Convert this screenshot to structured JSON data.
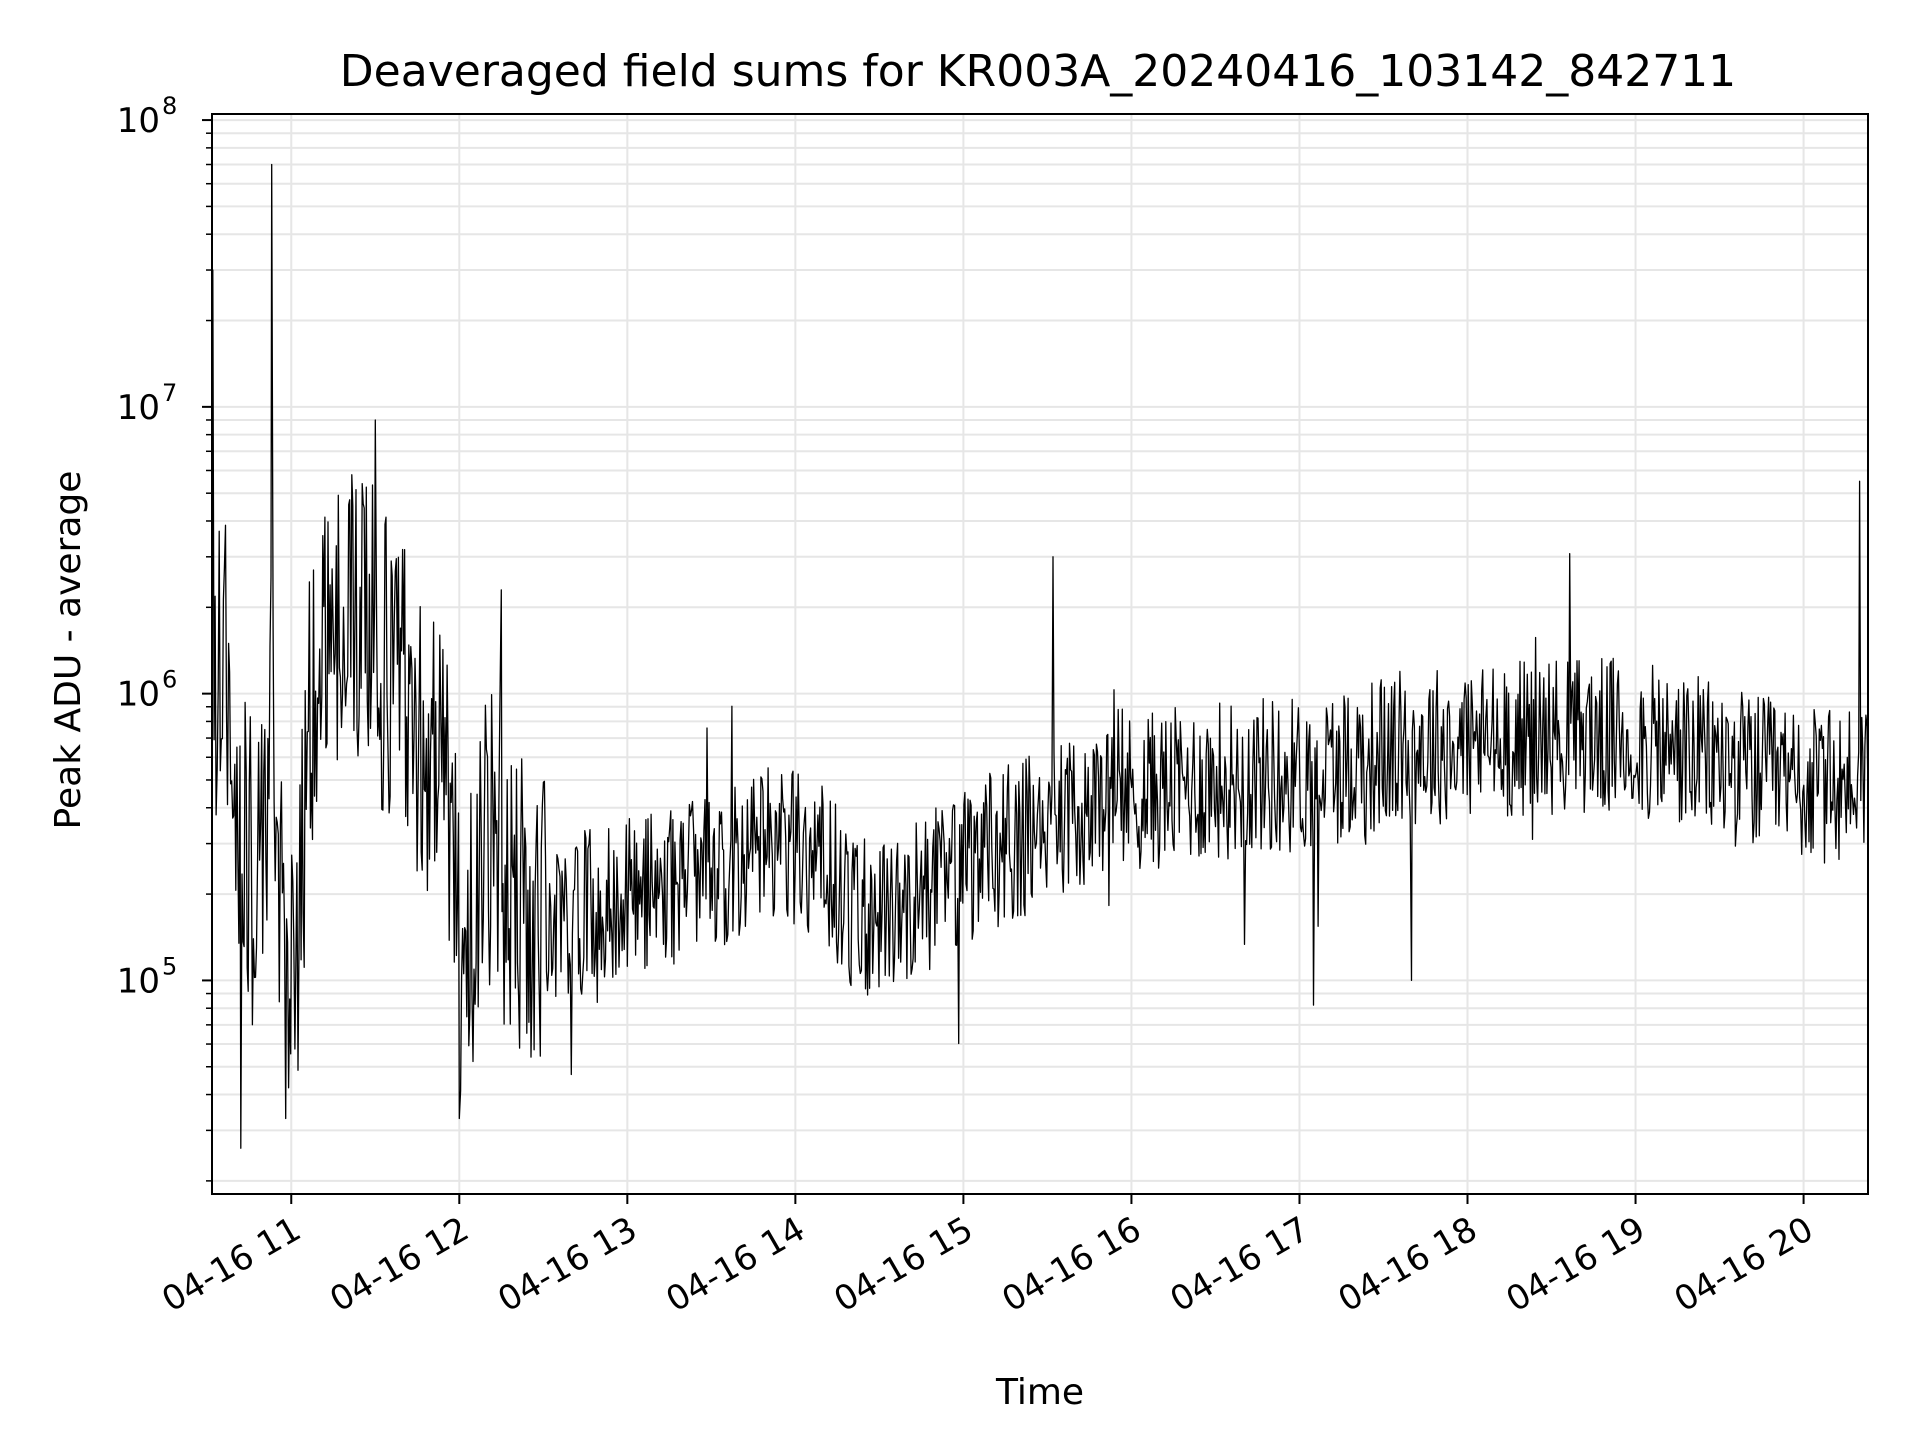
{
  "chart_data": {
    "type": "line",
    "title": "Deaveraged field sums for KR003A_20240416_103142_842711",
    "xlabel": "Time",
    "ylabel": "Peak ADU - average",
    "y_scale": "log",
    "ylim": [
      18000,
      105000000
    ],
    "xlim": [
      "2024-04-16 10:31:42",
      "2024-04-16 20:23:00"
    ],
    "grid": {
      "major": true,
      "minor_y": true,
      "color": "#e6e6e6"
    },
    "line_color": "#000000",
    "x_ticks": [
      {
        "value": "2024-04-16 11:00",
        "label": "04-16 11"
      },
      {
        "value": "2024-04-16 12:00",
        "label": "04-16 12"
      },
      {
        "value": "2024-04-16 13:00",
        "label": "04-16 13"
      },
      {
        "value": "2024-04-16 14:00",
        "label": "04-16 14"
      },
      {
        "value": "2024-04-16 15:00",
        "label": "04-16 15"
      },
      {
        "value": "2024-04-16 16:00",
        "label": "04-16 16"
      },
      {
        "value": "2024-04-16 17:00",
        "label": "04-16 17"
      },
      {
        "value": "2024-04-16 18:00",
        "label": "04-16 18"
      },
      {
        "value": "2024-04-16 19:00",
        "label": "04-16 19"
      },
      {
        "value": "2024-04-16 20:00",
        "label": "04-16 20"
      }
    ],
    "y_ticks": [
      {
        "value": 100000,
        "base": "10",
        "exp": "5"
      },
      {
        "value": 1000000,
        "base": "10",
        "exp": "6"
      },
      {
        "value": 10000000,
        "base": "10",
        "exp": "7"
      },
      {
        "value": 100000000,
        "base": "10",
        "exp": "8"
      }
    ],
    "series": [
      {
        "x": [
          "2024-04-16 10:31:42",
          "2024-04-16 10:36",
          "2024-04-16 10:40",
          "2024-04-16 10:45",
          "2024-04-16 10:50",
          "2024-04-16 10:53",
          "2024-04-16 10:55",
          "2024-04-16 10:58",
          "2024-04-16 11:02",
          "2024-04-16 11:06",
          "2024-04-16 11:12",
          "2024-04-16 11:18",
          "2024-04-16 11:24",
          "2024-04-16 11:30",
          "2024-04-16 11:36",
          "2024-04-16 11:42",
          "2024-04-16 11:48",
          "2024-04-16 11:54",
          "2024-04-16 12:00",
          "2024-04-16 12:06",
          "2024-04-16 12:12",
          "2024-04-16 12:18",
          "2024-04-16 12:24",
          "2024-04-16 12:30",
          "2024-04-16 12:40",
          "2024-04-16 12:50",
          "2024-04-16 13:00",
          "2024-04-16 13:10",
          "2024-04-16 13:20",
          "2024-04-16 13:30",
          "2024-04-16 13:40",
          "2024-04-16 13:50",
          "2024-04-16 14:00",
          "2024-04-16 14:10",
          "2024-04-16 14:20",
          "2024-04-16 14:30",
          "2024-04-16 14:40",
          "2024-04-16 14:50",
          "2024-04-16 15:00",
          "2024-04-16 15:10",
          "2024-04-16 15:20",
          "2024-04-16 15:30",
          "2024-04-16 15:40",
          "2024-04-16 15:50",
          "2024-04-16 16:00",
          "2024-04-16 16:15",
          "2024-04-16 16:30",
          "2024-04-16 16:45",
          "2024-04-16 17:00",
          "2024-04-16 17:15",
          "2024-04-16 17:30",
          "2024-04-16 17:45",
          "2024-04-16 18:00",
          "2024-04-16 18:15",
          "2024-04-16 18:30",
          "2024-04-16 18:45",
          "2024-04-16 19:00",
          "2024-04-16 19:15",
          "2024-04-16 19:30",
          "2024-04-16 19:45",
          "2024-04-16 20:00",
          "2024-04-16 20:10",
          "2024-04-16 20:20"
        ],
        "y": [
          800000,
          1500000,
          400000,
          250000,
          220000,
          2000000,
          300000,
          120000,
          90000,
          700000,
          1500000,
          2000000,
          1800000,
          1500000,
          1200000,
          1000000,
          700000,
          600000,
          130000,
          180000,
          350000,
          200000,
          160000,
          150000,
          170000,
          180000,
          200000,
          210000,
          220000,
          240000,
          260000,
          290000,
          300000,
          260000,
          170000,
          160000,
          190000,
          210000,
          240000,
          280000,
          310000,
          340000,
          380000,
          420000,
          450000,
          470000,
          500000,
          520000,
          520000,
          570000,
          620000,
          660000,
          680000,
          700000,
          720000,
          720000,
          680000,
          630000,
          580000,
          520000,
          480000,
          460000,
          520000
        ]
      }
    ],
    "spikes": [
      {
        "x": "2024-04-16 10:32",
        "y": 30000000
      },
      {
        "x": "2024-04-16 10:53",
        "y": 70000000
      },
      {
        "x": "2024-04-16 10:42",
        "y": 26000
      },
      {
        "x": "2024-04-16 10:58",
        "y": 33000
      },
      {
        "x": "2024-04-16 11:30",
        "y": 9000000
      },
      {
        "x": "2024-04-16 12:00",
        "y": 33000
      },
      {
        "x": "2024-04-16 12:15",
        "y": 2300000
      },
      {
        "x": "2024-04-16 12:40",
        "y": 47000
      },
      {
        "x": "2024-04-16 15:32",
        "y": 3000000
      },
      {
        "x": "2024-04-16 17:05",
        "y": 82000
      },
      {
        "x": "2024-04-16 17:40",
        "y": 100000
      },
      {
        "x": "2024-04-16 20:20",
        "y": 5500000
      }
    ]
  }
}
